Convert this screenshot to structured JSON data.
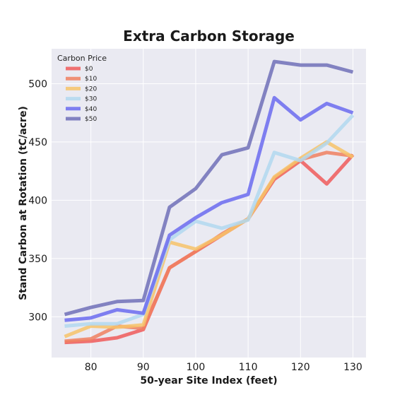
{
  "chart_data": {
    "type": "line",
    "title": "Extra Carbon Storage",
    "xlabel": "50-year Site Index (feet)",
    "ylabel": "Stand Carbon at Rotation (tC/acre)",
    "xlim": [
      72.5,
      132.5
    ],
    "ylim": [
      265,
      530
    ],
    "xticks": [
      80,
      90,
      100,
      110,
      120,
      130
    ],
    "yticks": [
      300,
      350,
      400,
      450,
      500
    ],
    "grid": true,
    "legend_title": "Carbon Price",
    "legend_placement": "top-left",
    "x": [
      75,
      80,
      85,
      90,
      95,
      100,
      105,
      110,
      115,
      120,
      125,
      130
    ],
    "series": [
      {
        "name": "$0",
        "color": "#f05a5a",
        "values": [
          278,
          279,
          282,
          289,
          342,
          356,
          370,
          384,
          418,
          434,
          414,
          439
        ]
      },
      {
        "name": "$10",
        "color": "#f08060",
        "values": [
          279,
          281,
          292,
          290,
          342,
          356,
          371,
          384,
          419,
          435,
          441,
          438
        ]
      },
      {
        "name": "$20",
        "color": "#f7c36a",
        "values": [
          283,
          292,
          291,
          293,
          364,
          358,
          370,
          384,
          420,
          436,
          450,
          437
        ]
      },
      {
        "name": "$30",
        "color": "#b2d8f0",
        "values": [
          292,
          294,
          294,
          302,
          366,
          382,
          376,
          383,
          441,
          434,
          449,
          473
        ]
      },
      {
        "name": "$40",
        "color": "#6b6bf0",
        "values": [
          297,
          299,
          306,
          303,
          370,
          385,
          398,
          405,
          488,
          469,
          483,
          475
        ]
      },
      {
        "name": "$50",
        "color": "#7070b8",
        "values": [
          302,
          308,
          313,
          314,
          394,
          410,
          439,
          445,
          519,
          516,
          516,
          510
        ]
      }
    ]
  }
}
